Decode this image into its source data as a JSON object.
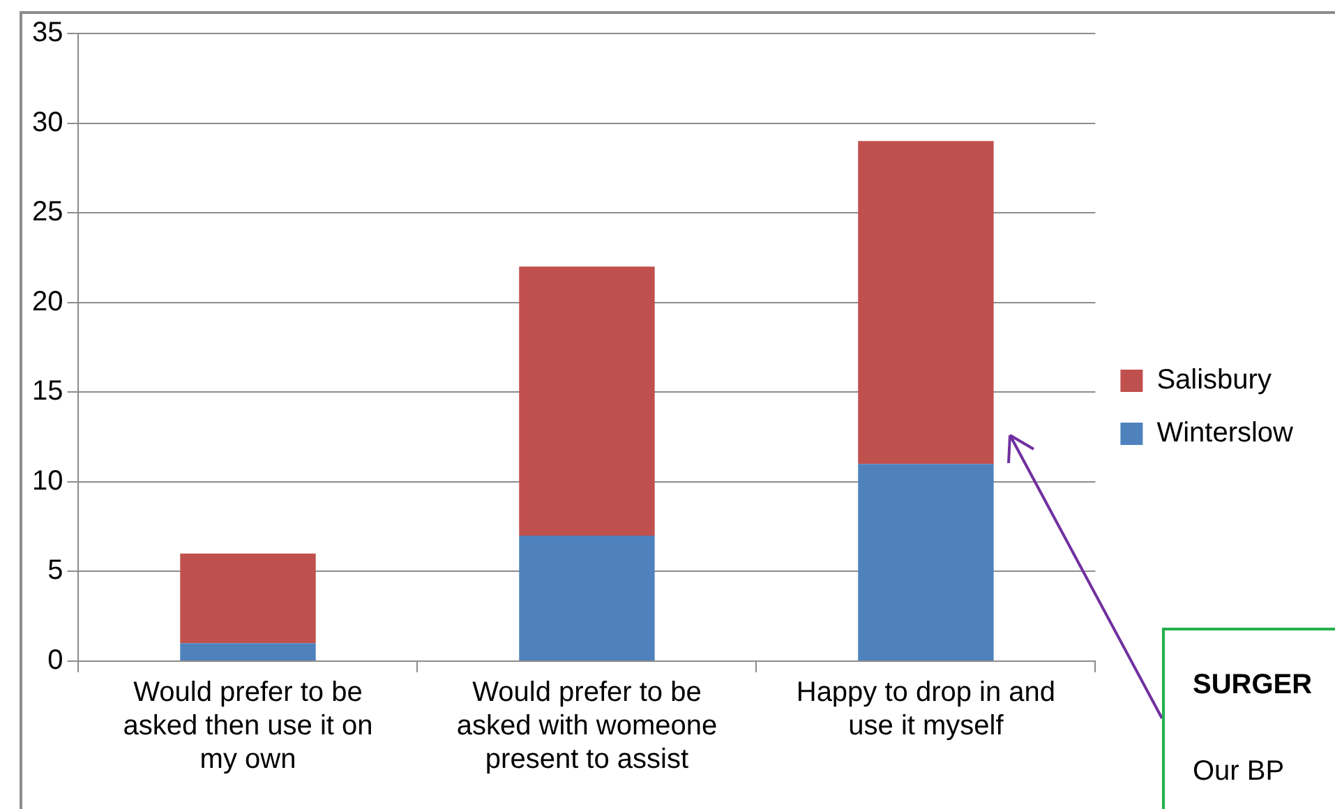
{
  "chart_data": {
    "type": "bar",
    "stacked": true,
    "categories": [
      "Would prefer to be asked then use it on my own",
      "Would prefer to be asked with womeone present to assist",
      "Happy to drop in and use it myself"
    ],
    "series": [
      {
        "name": "Winterslow",
        "color": "#4f81bd",
        "values": [
          1,
          7,
          11
        ]
      },
      {
        "name": "Salisbury",
        "color": "#c0504d",
        "values": [
          5,
          15,
          18
        ]
      }
    ],
    "ylim": [
      0,
      35
    ],
    "yticks": [
      0,
      5,
      10,
      15,
      20,
      25,
      30,
      35
    ],
    "grid": "y",
    "legend": "right",
    "annotations": [
      "SURGER",
      "Our BP"
    ]
  }
}
